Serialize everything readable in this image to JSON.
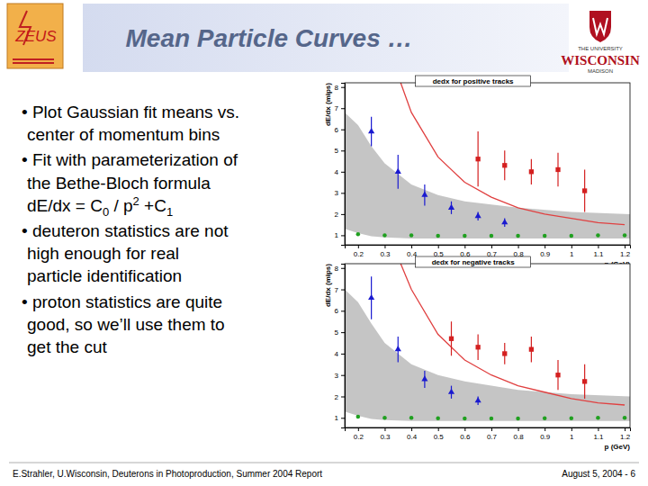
{
  "slide": {
    "title": "Mean Particle Curves …",
    "logo_left": "ZEUS",
    "logo_right": [
      "THE UNIVERSITY",
      "WISCONSIN",
      "MADISON"
    ],
    "bullets": [
      [
        "• Plot Gaussian fit means vs.",
        "center of momentum bins"
      ],
      [
        "• Fit with parameterization of",
        "the Bethe-Bloch formula"
      ],
      [
        "• deuteron statistics are not",
        "high enough for real",
        "particle identification"
      ],
      [
        "• proton statistics are quite",
        "good, so we’ll use them to",
        "get the cut"
      ]
    ],
    "formula": [
      "dE/dx = C",
      "0",
      " / p",
      "2",
      " +C",
      "1"
    ],
    "footer_left": "E.Strahler, U.Wisconsin, Deuterons in Photoproduction, Summer 2004 Report",
    "footer_right": "August 5, 2004 - 6"
  },
  "chart_data": [
    {
      "type": "scatter",
      "title": "dedx for positive tracks",
      "xlabel": "p (GeV)",
      "ylabel": "dE/dx (mips)",
      "xlim": [
        0.15,
        1.22
      ],
      "ylim": [
        0.55,
        8.2
      ],
      "xticks": [
        0.2,
        0.3,
        0.4,
        0.5,
        0.6,
        0.7,
        0.8,
        0.9,
        1,
        1.1,
        1.2
      ],
      "yticks": [
        1,
        2,
        3,
        4,
        5,
        6,
        7,
        8
      ],
      "series": [
        {
          "type": "area",
          "color": "#8c8c8c",
          "x": [
            0.15,
            0.2,
            0.25,
            0.3,
            0.4,
            0.5,
            0.6,
            0.8,
            1.0,
            1.22
          ],
          "high": [
            6.8,
            6.2,
            5.2,
            4.4,
            3.4,
            2.9,
            2.6,
            2.3,
            2.1,
            2.0
          ],
          "low": [
            1.3,
            1.1,
            0.95,
            0.9,
            0.85,
            0.85,
            0.85,
            0.85,
            0.85,
            0.85
          ]
        },
        {
          "type": "scatter",
          "color": "#20a020",
          "marker": "circle",
          "x": [
            0.2,
            0.3,
            0.4,
            0.5,
            0.6,
            0.7,
            0.8,
            0.9,
            1.0,
            1.1,
            1.2
          ],
          "values": [
            1.05,
            1.0,
            1.0,
            0.98,
            0.97,
            0.97,
            0.97,
            0.98,
            0.98,
            1.0,
            1.0
          ]
        },
        {
          "type": "line",
          "color": "#e04040",
          "x": [
            0.36,
            0.4,
            0.5,
            0.6,
            0.7,
            0.8,
            0.9,
            1.0,
            1.1,
            1.2
          ],
          "values": [
            8.2,
            6.8,
            4.7,
            3.5,
            2.8,
            2.3,
            2.0,
            1.8,
            1.6,
            1.5
          ]
        },
        {
          "type": "scatter",
          "color": "#1a1ad0",
          "marker": "triangle",
          "x": [
            0.25,
            0.35,
            0.45,
            0.55,
            0.65,
            0.75
          ],
          "values": [
            5.9,
            4.0,
            2.9,
            2.3,
            1.9,
            1.6
          ],
          "errors": [
            0.7,
            0.8,
            0.5,
            0.3,
            0.2,
            0.2
          ]
        },
        {
          "type": "scatter",
          "color": "#d42020",
          "marker": "square",
          "x": [
            0.65,
            0.75,
            0.85,
            0.95,
            1.05
          ],
          "values": [
            4.6,
            4.3,
            4.0,
            4.1,
            3.1
          ],
          "errors": [
            1.3,
            0.7,
            0.6,
            0.8,
            1.0
          ]
        }
      ]
    },
    {
      "type": "scatter",
      "title": "dedx for negative tracks",
      "xlabel": "p (GeV)",
      "ylabel": "dE/dx (mips)",
      "xlim": [
        0.15,
        1.22
      ],
      "ylim": [
        0.55,
        8.2
      ],
      "xticks": [
        0.2,
        0.3,
        0.4,
        0.5,
        0.6,
        0.7,
        0.8,
        0.9,
        1,
        1.1,
        1.2
      ],
      "yticks": [
        1,
        2,
        3,
        4,
        5,
        6,
        7,
        8
      ],
      "series": [
        {
          "type": "area",
          "color": "#8c8c8c",
          "x": [
            0.15,
            0.2,
            0.25,
            0.3,
            0.4,
            0.5,
            0.6,
            0.8,
            1.0,
            1.22
          ],
          "high": [
            7.0,
            6.4,
            5.4,
            4.5,
            3.5,
            3.0,
            2.7,
            2.3,
            2.1,
            2.0
          ],
          "low": [
            1.3,
            1.1,
            0.95,
            0.9,
            0.85,
            0.85,
            0.85,
            0.85,
            0.85,
            0.85
          ]
        },
        {
          "type": "scatter",
          "color": "#20a020",
          "marker": "circle",
          "x": [
            0.2,
            0.3,
            0.4,
            0.5,
            0.6,
            0.7,
            0.8,
            0.9,
            1.0,
            1.1,
            1.2
          ],
          "values": [
            1.05,
            1.0,
            1.0,
            0.98,
            0.97,
            0.97,
            0.97,
            0.98,
            0.98,
            1.0,
            1.0
          ]
        },
        {
          "type": "line",
          "color": "#e04040",
          "x": [
            0.36,
            0.4,
            0.5,
            0.6,
            0.7,
            0.8,
            0.9,
            1.0,
            1.1,
            1.2
          ],
          "values": [
            8.2,
            7.0,
            4.9,
            3.7,
            3.0,
            2.5,
            2.2,
            1.9,
            1.7,
            1.6
          ]
        },
        {
          "type": "scatter",
          "color": "#1a1ad0",
          "marker": "triangle",
          "x": [
            0.25,
            0.35,
            0.45,
            0.55,
            0.65
          ],
          "values": [
            6.6,
            4.2,
            2.8,
            2.2,
            1.8
          ],
          "errors": [
            1.0,
            0.6,
            0.4,
            0.3,
            0.2
          ]
        },
        {
          "type": "scatter",
          "color": "#d42020",
          "marker": "square",
          "x": [
            0.55,
            0.65,
            0.75,
            0.85,
            0.95,
            1.05
          ],
          "values": [
            4.7,
            4.3,
            4.0,
            4.2,
            3.0,
            2.7
          ],
          "errors": [
            0.8,
            0.6,
            0.5,
            0.6,
            0.7,
            0.8
          ]
        }
      ]
    }
  ]
}
